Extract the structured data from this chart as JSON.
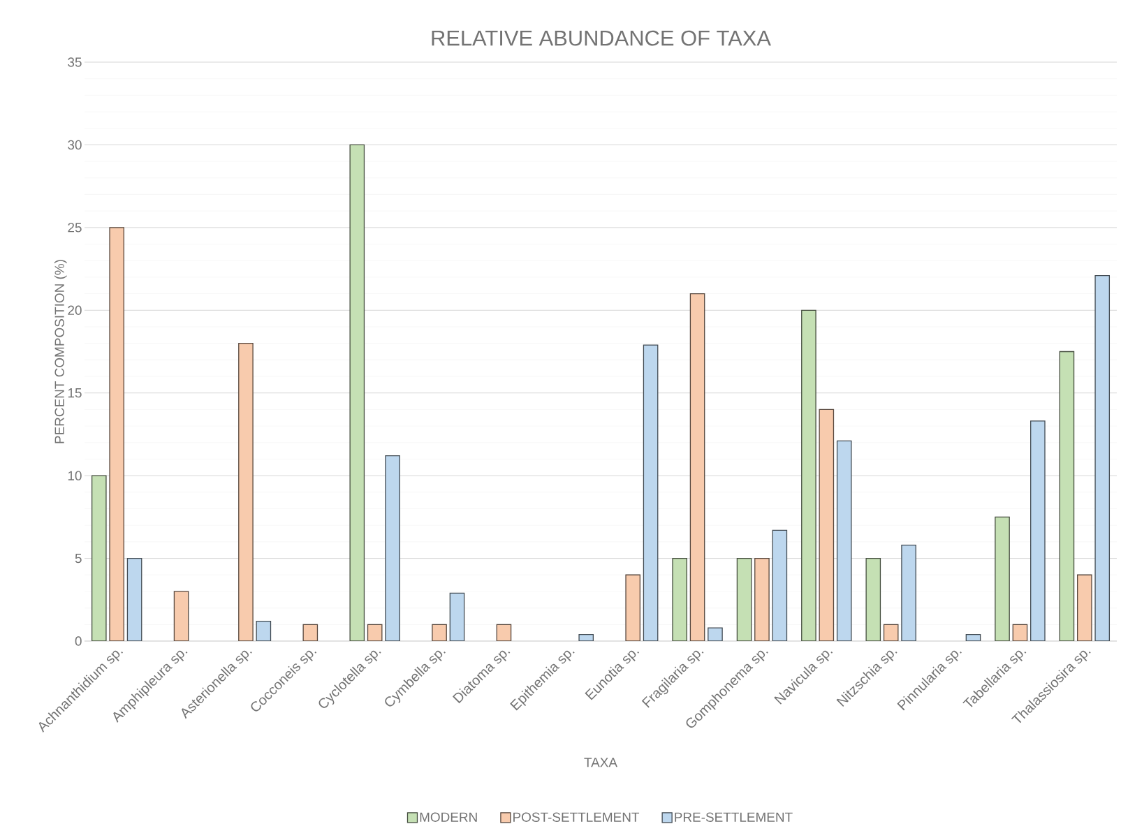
{
  "chart_data": {
    "type": "bar",
    "title": "RELATIVE ABUNDANCE OF TAXA",
    "xlabel": "TAXA",
    "ylabel": "PERCENT COMPOSITION (%)",
    "categories": [
      "Achnanthidium sp.",
      "Amphipleura sp.",
      "Asterionella sp.",
      "Cocconeis sp.",
      "Cyclotella sp.",
      "Cymbella sp.",
      "Diatoma sp.",
      "Epithemia sp.",
      "Eunotia sp.",
      "Fragilaria sp.",
      "Gomphonema sp.",
      "Navicula sp.",
      "Nitzschia sp.",
      "Pinnularia sp.",
      "Tabellaria sp.",
      "Thalassiosira sp."
    ],
    "series": [
      {
        "name": "MODERN",
        "color": "#c5e0b4",
        "values": [
          10,
          null,
          null,
          null,
          30,
          null,
          null,
          null,
          null,
          5,
          5,
          20,
          5,
          null,
          7.5,
          17.5
        ]
      },
      {
        "name": "POST-SETTLEMENT",
        "color": "#f8cbad",
        "values": [
          25,
          3,
          18,
          1,
          1,
          1,
          1,
          null,
          4,
          21,
          5,
          14,
          1,
          null,
          1,
          4
        ]
      },
      {
        "name": "PRE-SETTLEMENT",
        "color": "#bdd7ee",
        "values": [
          5,
          null,
          1.2,
          null,
          11.2,
          2.9,
          null,
          0.4,
          17.9,
          0.8,
          6.7,
          12.1,
          5.8,
          0.4,
          13.3,
          22.1
        ]
      }
    ],
    "ylim": [
      0,
      35
    ],
    "yticks": [
      0,
      5,
      10,
      15,
      20,
      25,
      30,
      35
    ],
    "grid": "y",
    "legend": "bottom"
  }
}
